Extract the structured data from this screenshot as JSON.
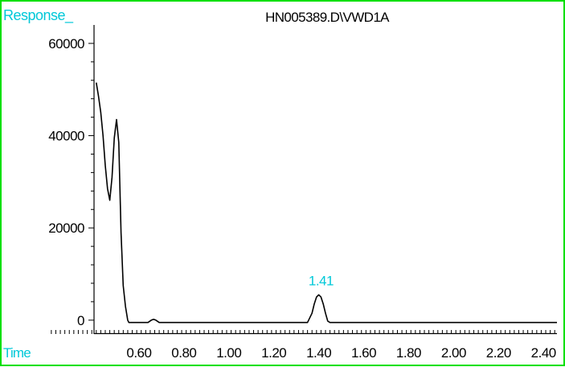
{
  "colors": {
    "border": "#00e000",
    "label": "#00c8d8",
    "trace": "#000000",
    "peak_label": "#00c8d8"
  },
  "labels": {
    "y_axis": "Response_",
    "x_axis": "Time"
  },
  "chart_data": {
    "type": "line",
    "title": "HN005389.D\\VWD1A",
    "xlabel": "Time",
    "ylabel": "Response_",
    "xlim": [
      0.4,
      2.46
    ],
    "ylim": [
      -3000,
      64000
    ],
    "x_ticks": [
      0.6,
      0.8,
      1.0,
      1.2,
      1.4,
      1.6,
      1.8,
      2.0,
      2.2,
      2.4
    ],
    "x_tick_labels": [
      "0.60",
      "0.80",
      "1.00",
      "1.20",
      "1.40",
      "1.60",
      "1.80",
      "2.00",
      "2.20",
      "2.40"
    ],
    "y_ticks": [
      0,
      20000,
      40000,
      60000
    ],
    "y_tick_labels": [
      "0",
      "20000",
      "40000",
      "60000"
    ],
    "grid": false,
    "series": [
      {
        "x": [
          0.41,
          0.42,
          0.43,
          0.44,
          0.45,
          0.46,
          0.47,
          0.48,
          0.49,
          0.5,
          0.51,
          0.52,
          0.53,
          0.54,
          0.55,
          0.555,
          0.56,
          0.565,
          0.57,
          0.58,
          0.6,
          0.62,
          0.64,
          0.655,
          0.665,
          0.675,
          0.69,
          0.72,
          0.8,
          1.0,
          1.2,
          1.35,
          1.37,
          1.38,
          1.39,
          1.4,
          1.41,
          1.42,
          1.43,
          1.44,
          1.45,
          1.46,
          1.47,
          1.6,
          1.8,
          2.0,
          2.2,
          2.4,
          2.46
        ],
        "y": [
          51500,
          48500,
          45000,
          40000,
          33500,
          28500,
          26000,
          31000,
          39500,
          43500,
          38500,
          19000,
          7500,
          3000,
          0,
          -500,
          -500,
          -500,
          -500,
          -500,
          -500,
          -500,
          -500,
          0,
          200,
          0,
          -500,
          -500,
          -500,
          -500,
          -500,
          -500,
          1500,
          3500,
          5000,
          5500,
          5000,
          3500,
          1500,
          -200,
          -500,
          -500,
          -500,
          -500,
          -500,
          -500,
          -500,
          -500,
          -500
        ]
      }
    ],
    "annotations": [
      {
        "text": "1.41",
        "x": 1.41,
        "y": 5500
      }
    ]
  }
}
